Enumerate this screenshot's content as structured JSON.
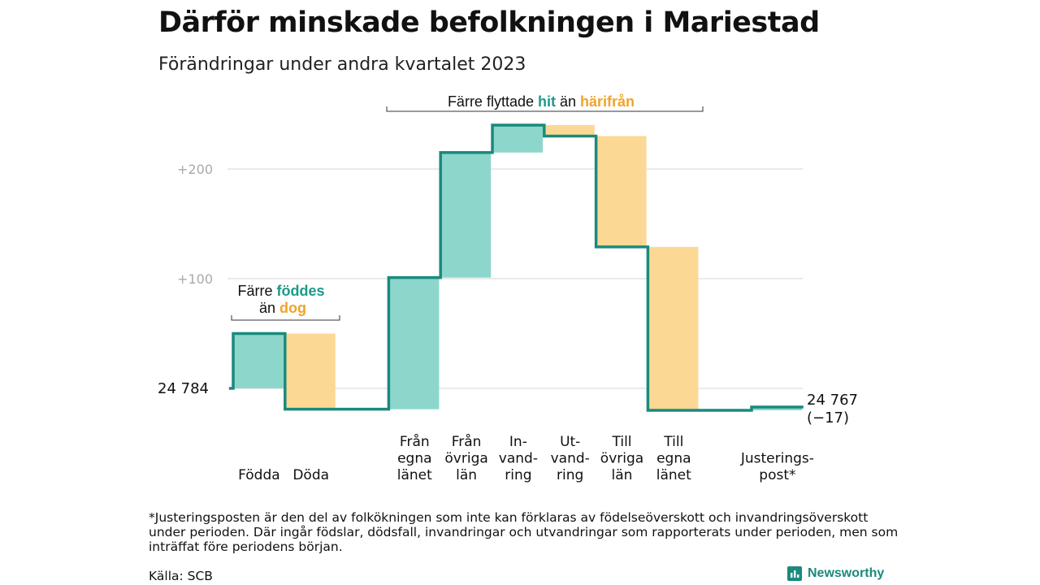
{
  "title": "Därför minskade befolkningen i Mariestad",
  "subtitle": "Förändringar under andra kvartalet 2023",
  "colors": {
    "line": "#1a8a7d",
    "inflow": "#8dd6cc",
    "outflow": "#fbd894",
    "teal_text": "#1b9a8a",
    "orange_text": "#f0a32b",
    "grid": "#dddddd",
    "tick_text": "#aaaaaa"
  },
  "annotations": {
    "births_deaths": {
      "line1_prefix": "Färre ",
      "line1_highlight": "föddes",
      "line2_prefix": "än ",
      "line2_highlight": "dog"
    },
    "migration": {
      "prefix": "Färre flyttade ",
      "highlight1": "hit",
      "middle": " än ",
      "highlight2": "härifrån"
    }
  },
  "chart_data": {
    "type": "waterfall",
    "start_label": "24  784",
    "end_label": "24 767",
    "end_change": "(−17)",
    "start_value": 0,
    "y_ticks": [
      {
        "value": 200,
        "label": "+200"
      },
      {
        "value": 100,
        "label": "+100"
      }
    ],
    "categories": [
      {
        "label": [
          "Födda"
        ],
        "start": 0,
        "end": 50,
        "kind": "inflow"
      },
      {
        "label": [
          "Döda"
        ],
        "start": 50,
        "end": -19,
        "kind": "outflow"
      },
      {
        "label": [],
        "start": -19,
        "end": -19,
        "kind": "none"
      },
      {
        "label": [
          "Från",
          "egna",
          "länet"
        ],
        "start": -19,
        "end": 101,
        "kind": "inflow"
      },
      {
        "label": [
          "Från",
          "övriga",
          "län"
        ],
        "start": 101,
        "end": 215,
        "kind": "inflow"
      },
      {
        "label": [
          "In-",
          "vand-",
          "ring"
        ],
        "start": 215,
        "end": 240,
        "kind": "inflow"
      },
      {
        "label": [
          "Ut-",
          "vand-",
          "ring"
        ],
        "start": 240,
        "end": 230,
        "kind": "outflow"
      },
      {
        "label": [
          "Till",
          "övriga",
          "län"
        ],
        "start": 230,
        "end": 129,
        "kind": "outflow"
      },
      {
        "label": [
          "Till",
          "egna",
          "länet"
        ],
        "start": 129,
        "end": -20,
        "kind": "outflow"
      },
      {
        "label": [],
        "start": -20,
        "end": -20,
        "kind": "none"
      },
      {
        "label": [
          "Justerings-",
          "post*"
        ],
        "start": -20,
        "end": -17,
        "kind": "inflow"
      }
    ]
  },
  "footnote": "*Justeringsposten är den del av folkökningen som inte kan förklaras av födelseöverskott och invandringsöverskott under perioden. Där ingår födslar, dödsfall, invandringar och utvandringar som rapporterats under perioden, men som inträffat före periodens början.",
  "source": "Källa: SCB",
  "brand": "Newsworthy"
}
